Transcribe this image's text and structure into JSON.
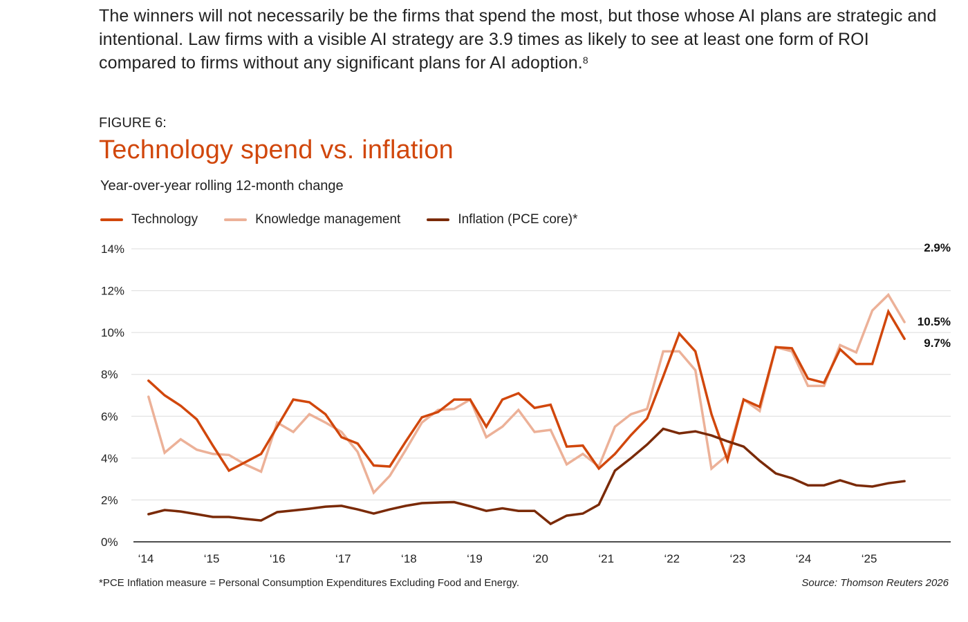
{
  "intro": {
    "text": "The winners will not necessarily be the firms that spend the most, but those whose AI plans are strategic and intentional. Law firms with a visible AI strategy are 3.9 times as likely to see at least one form of ROI compared to firms without any significant plans for AI adoption.",
    "footnote_ref": "8"
  },
  "figure_label": "FIGURE 6:",
  "footnote": "*PCE Inflation measure = Personal Consumption Expenditures Excluding Food and Energy.",
  "source": "Source: Thomson Reuters 2026",
  "chart_data": {
    "type": "line",
    "title": "Technology spend vs. inflation",
    "subtitle": "Year-over-year rolling 12-month change",
    "xlabel": "",
    "ylabel": "",
    "ylim": [
      0,
      14
    ],
    "xlim": [
      2014,
      2026
    ],
    "grid": true,
    "legend_position": "top-left",
    "y_ticks": [
      0,
      2,
      4,
      6,
      8,
      10,
      12,
      14
    ],
    "y_tick_labels": [
      "0%",
      "2%",
      "4%",
      "6%",
      "8%",
      "10%",
      "12%",
      "14%"
    ],
    "x_ticks": [
      2014,
      2015,
      2016,
      2017,
      2018,
      2019,
      2020,
      2021,
      2022,
      2023,
      2024,
      2025
    ],
    "x_tick_labels": [
      "‘14",
      "‘15",
      "‘16",
      "‘17",
      "‘18",
      "‘19",
      "‘20",
      "‘21",
      "‘22",
      "‘23",
      "‘24",
      "‘25"
    ],
    "x_start": 2014.04,
    "x_step": 0.2446,
    "series": [
      {
        "name": "Technology",
        "color": "#d1470c",
        "end_label": "9.7%",
        "values": [
          7.7,
          7.0,
          6.5,
          5.85,
          4.6,
          3.4,
          3.8,
          4.2,
          5.5,
          6.8,
          6.67,
          6.1,
          5.0,
          4.7,
          3.65,
          3.6,
          4.8,
          5.95,
          6.2,
          6.8,
          6.8,
          5.5,
          6.8,
          7.1,
          6.4,
          6.55,
          4.55,
          4.6,
          3.5,
          4.2,
          5.1,
          5.9,
          7.9,
          9.95,
          9.1,
          6.1,
          3.9,
          6.8,
          6.45,
          9.3,
          9.25,
          7.8,
          7.6,
          9.2,
          8.5,
          8.5,
          11.0,
          9.7
        ]
      },
      {
        "name": "Knowledge management",
        "color": "#ecb198",
        "end_label": "10.5%",
        "values": [
          6.93,
          4.26,
          4.9,
          4.4,
          4.2,
          4.15,
          3.7,
          3.35,
          5.7,
          5.25,
          6.1,
          5.7,
          5.25,
          4.3,
          2.35,
          3.15,
          4.4,
          5.7,
          6.3,
          6.35,
          6.8,
          5.0,
          5.5,
          6.3,
          5.25,
          5.35,
          3.7,
          4.2,
          3.6,
          5.5,
          6.1,
          6.35,
          9.1,
          9.1,
          8.2,
          3.5,
          4.15,
          6.8,
          6.25,
          9.3,
          9.1,
          7.45,
          7.45,
          9.4,
          9.05,
          11.05,
          11.8,
          10.5
        ]
      },
      {
        "name": "Inflation (PCE core)*",
        "color": "#7a2a07",
        "end_label": "2.9%",
        "values": [
          1.32,
          1.52,
          1.45,
          1.32,
          1.19,
          1.19,
          1.1,
          1.02,
          1.42,
          1.5,
          1.58,
          1.68,
          1.72,
          1.55,
          1.35,
          1.55,
          1.72,
          1.85,
          1.88,
          1.9,
          1.7,
          1.48,
          1.6,
          1.48,
          1.48,
          0.86,
          1.25,
          1.35,
          1.78,
          3.4,
          4.0,
          4.65,
          5.4,
          5.18,
          5.28,
          5.08,
          4.8,
          4.55,
          3.87,
          3.27,
          3.04,
          2.7,
          2.7,
          2.94,
          2.7,
          2.64,
          2.8,
          2.9
        ]
      }
    ]
  }
}
